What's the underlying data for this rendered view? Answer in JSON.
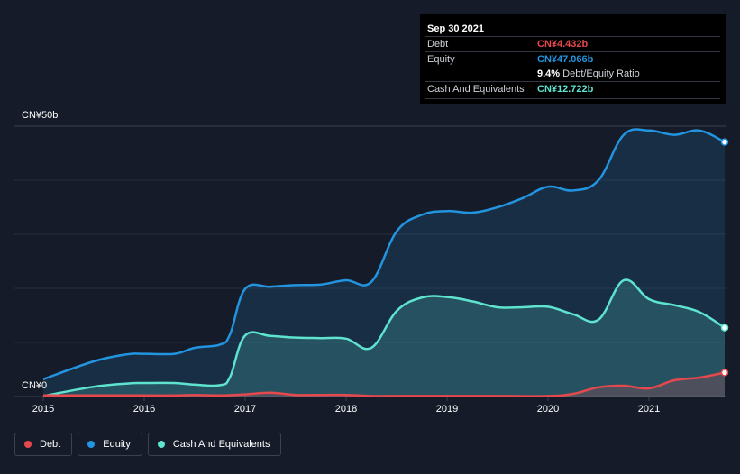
{
  "tooltip": {
    "date": "Sep 30 2021",
    "debt_label": "Debt",
    "debt_value": "CN¥4.432b",
    "equity_label": "Equity",
    "equity_value": "CN¥47.066b",
    "ratio_value": "9.4%",
    "ratio_label": "Debt/Equity Ratio",
    "cash_label": "Cash And Equivalents",
    "cash_value": "CN¥12.722b"
  },
  "legend": {
    "debt": "Debt",
    "equity": "Equity",
    "cash": "Cash And Equivalents"
  },
  "colors": {
    "debt": "#e5484d",
    "equity": "#2394df",
    "cash": "#5ee3cf",
    "background": "#151b28"
  },
  "chart_data": {
    "type": "area",
    "y_unit": "CN¥ billions",
    "ylim": [
      0,
      50
    ],
    "y_tick_labels": [
      "CN¥0",
      "CN¥50b"
    ],
    "x_ticks": [
      2015,
      2016,
      2017,
      2018,
      2019,
      2020,
      2021
    ],
    "grid": true,
    "series": [
      {
        "name": "Equity",
        "x": [
          2015.0,
          2015.5,
          2015.83,
          2016.0,
          2016.3,
          2016.5,
          2016.75,
          2016.85,
          2017.0,
          2017.25,
          2017.5,
          2017.75,
          2018.0,
          2018.25,
          2018.5,
          2018.75,
          2019.0,
          2019.25,
          2019.5,
          2019.75,
          2020.0,
          2020.25,
          2020.5,
          2020.75,
          2021.0,
          2021.25,
          2021.5,
          2021.75
        ],
        "values": [
          3.2,
          6.5,
          7.8,
          7.9,
          7.9,
          9.0,
          9.6,
          11.5,
          19.9,
          20.3,
          20.6,
          20.7,
          21.5,
          21.2,
          30.5,
          33.6,
          34.3,
          34.0,
          35.0,
          36.7,
          38.8,
          38.1,
          40.0,
          48.4,
          49.2,
          48.4,
          49.2,
          47.066
        ]
      },
      {
        "name": "Cash And Equivalents",
        "x": [
          2015.0,
          2015.5,
          2015.83,
          2016.0,
          2016.3,
          2016.5,
          2016.75,
          2016.85,
          2017.0,
          2017.25,
          2017.5,
          2017.75,
          2018.0,
          2018.25,
          2018.5,
          2018.75,
          2019.0,
          2019.25,
          2019.5,
          2019.75,
          2020.0,
          2020.25,
          2020.5,
          2020.75,
          2021.0,
          2021.25,
          2021.5,
          2021.75
        ],
        "values": [
          0.1,
          1.8,
          2.4,
          2.5,
          2.5,
          2.2,
          2.1,
          3.6,
          11.3,
          11.2,
          10.9,
          10.8,
          10.7,
          9.0,
          15.8,
          18.3,
          18.4,
          17.6,
          16.5,
          16.5,
          16.6,
          15.2,
          14.2,
          21.5,
          18.0,
          16.9,
          15.6,
          12.722
        ]
      },
      {
        "name": "Debt",
        "x": [
          2015.0,
          2015.5,
          2016.0,
          2016.3,
          2016.5,
          2016.75,
          2017.0,
          2017.25,
          2017.5,
          2017.75,
          2018.0,
          2018.25,
          2018.5,
          2019.0,
          2019.5,
          2020.0,
          2020.25,
          2020.5,
          2020.75,
          2021.0,
          2021.25,
          2021.5,
          2021.75
        ],
        "values": [
          0.2,
          0.2,
          0.2,
          0.2,
          0.3,
          0.2,
          0.4,
          0.7,
          0.3,
          0.3,
          0.3,
          0.1,
          0.1,
          0.1,
          0.1,
          0.1,
          0.5,
          1.7,
          2.0,
          1.5,
          3.0,
          3.5,
          4.432
        ]
      }
    ]
  }
}
